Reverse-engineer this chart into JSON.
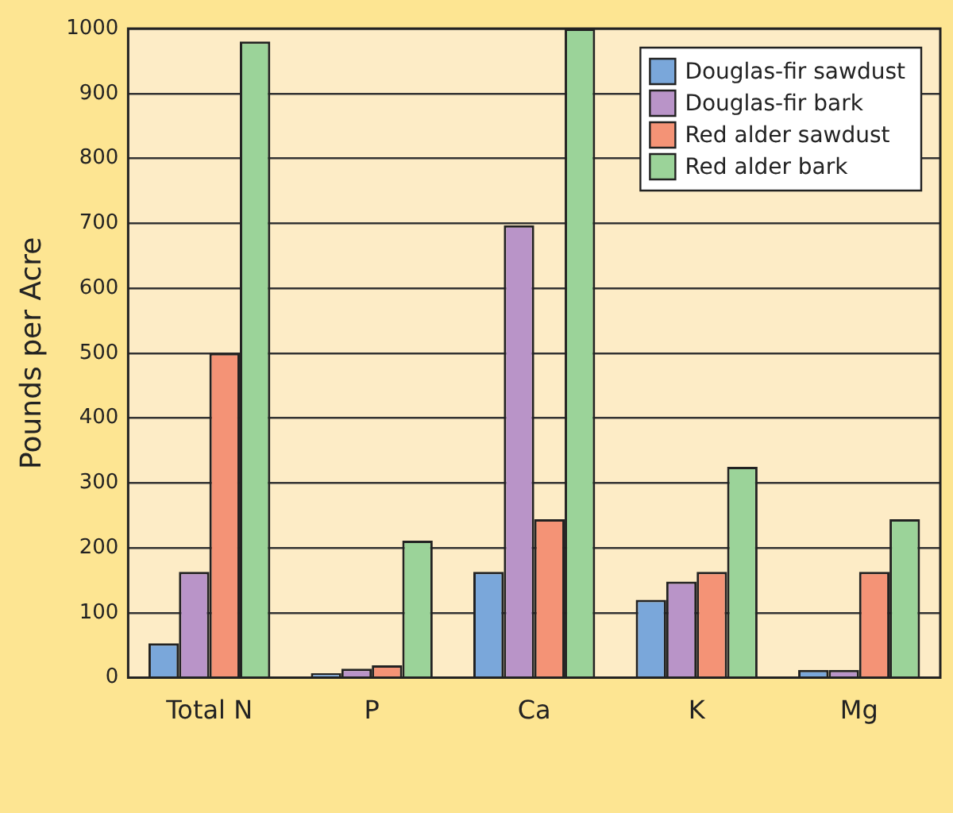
{
  "chart_data": {
    "type": "bar",
    "ylabel": "Pounds per Acre",
    "categories": [
      "Total N",
      "P",
      "Ca",
      "K",
      "Mg"
    ],
    "series": [
      {
        "name": "Douglas-fir sawdust",
        "color": "#7aa7da",
        "values": [
          53,
          7,
          163,
          120,
          12
        ]
      },
      {
        "name": "Douglas-fir bark",
        "color": "#b994c8",
        "values": [
          163,
          14,
          697,
          148,
          12
        ]
      },
      {
        "name": "Red alder sawdust",
        "color": "#f49376",
        "values": [
          500,
          19,
          244,
          163,
          163
        ]
      },
      {
        "name": "Red alder bark",
        "color": "#9bd399",
        "values": [
          980,
          211,
          1000,
          325,
          244
        ]
      }
    ],
    "ylim": [
      0,
      1000
    ],
    "yticks": [
      0,
      100,
      200,
      300,
      400,
      500,
      600,
      700,
      800,
      900,
      1000
    ],
    "grid": "y",
    "legend": "top right"
  }
}
